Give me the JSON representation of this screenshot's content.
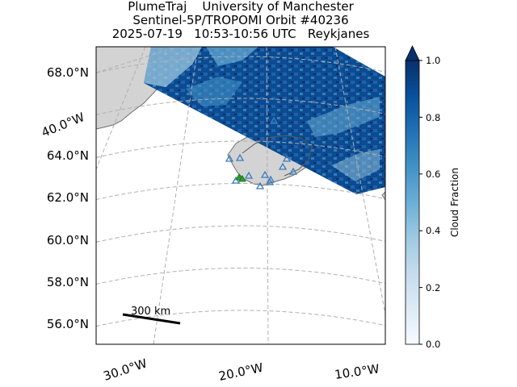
{
  "header": {
    "line1": "PlumeTraj    University of Manchester",
    "line2": "Sentinel-5P/TROPOMI Orbit #40236",
    "line3": "2025-07-19   10:53-10:56 UTC   Reykjanes"
  },
  "map": {
    "lat_labels": [
      "68.0°N",
      "64.0°N",
      "62.0°N",
      "60.0°N",
      "58.0°N",
      "56.0°N"
    ],
    "lon_labels": [
      "30.0°W",
      "20.0°W",
      "10.0°W"
    ],
    "diag_label": "40.0°W",
    "scale_bar_label": "300 km",
    "land_color": "#d3d3d3",
    "grid_color": "#b0b0b0",
    "station_marker_color": "#3a7dbf",
    "vent_marker_color": "#2ca02c"
  },
  "colorbar": {
    "label": "Cloud Fraction",
    "ticks": [
      "0.0",
      "0.2",
      "0.4",
      "0.6",
      "0.8",
      "1.0"
    ],
    "colormap": "Blues",
    "range": [
      0.0,
      1.0
    ]
  }
}
